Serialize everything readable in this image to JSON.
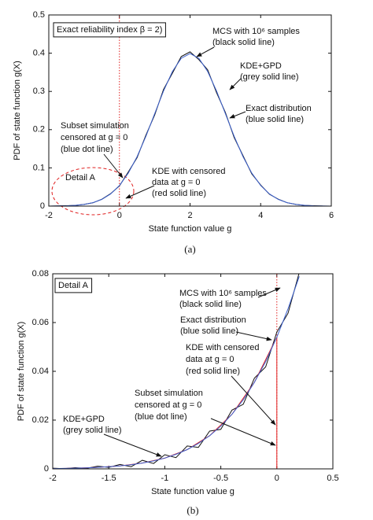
{
  "chart_data": [
    {
      "type": "line",
      "xlabel": "State function value g",
      "ylabel": "PDF of state function g(X)",
      "caption": "(a)",
      "xlim": [
        -2,
        6
      ],
      "ylim": [
        0,
        0.5
      ],
      "xticks": [
        -2,
        0,
        2,
        4,
        6
      ],
      "yticks": [
        0,
        0.1,
        0.2,
        0.3,
        0.4,
        0.5
      ],
      "vline": 0,
      "vline_color": "#e02020",
      "series": [
        {
          "color": "#111111",
          "x": [
            -2,
            -1.75,
            -1.5,
            -1.25,
            -1,
            -0.75,
            -0.5,
            -0.25,
            0,
            0.25,
            0.5,
            0.75,
            1,
            1.25,
            1.5,
            1.75,
            2,
            2.25,
            2.5,
            2.75,
            3,
            3.25,
            3.5,
            3.75,
            4,
            4.25,
            4.5,
            4.75,
            5,
            5.25,
            5.5,
            5.75,
            6
          ],
          "values": [
            0.0001,
            0.0005,
            0.0011,
            0.0018,
            0.0048,
            0.0086,
            0.018,
            0.0325,
            0.0528,
            0.089,
            0.1268,
            0.1856,
            0.2385,
            0.3052,
            0.3478,
            0.3912,
            0.4035,
            0.3831,
            0.3566,
            0.2968,
            0.2451,
            0.1792,
            0.1318,
            0.0842,
            0.0552,
            0.0309,
            0.0181,
            0.0088,
            0.0046,
            0.0019,
            0.001,
            0.0003,
            0.0001
          ]
        },
        {
          "color": "#3a5fcd",
          "x": [
            -2,
            -1.75,
            -1.5,
            -1.25,
            -1,
            -0.75,
            -0.5,
            -0.25,
            0,
            0.25,
            0.5,
            0.75,
            1,
            1.25,
            1.5,
            1.75,
            2,
            2.25,
            2.5,
            2.75,
            3,
            3.25,
            3.5,
            3.75,
            4,
            4.25,
            4.5,
            4.75,
            5,
            5.25,
            5.5,
            5.75,
            6
          ],
          "values": [
            0.0001,
            0.0004,
            0.0009,
            0.002,
            0.0044,
            0.0091,
            0.0175,
            0.0317,
            0.054,
            0.0863,
            0.1295,
            0.1826,
            0.242,
            0.3011,
            0.3521,
            0.3867,
            0.3989,
            0.3867,
            0.3521,
            0.3011,
            0.242,
            0.1826,
            0.1295,
            0.0863,
            0.054,
            0.0317,
            0.0175,
            0.0091,
            0.0044,
            0.002,
            0.0009,
            0.0004,
            0.0001
          ]
        },
        {
          "color": "#e02020",
          "x": [
            -2,
            6
          ],
          "values": [
            0,
            0
          ]
        }
      ],
      "annotations": [
        {
          "lines": [
            "Exact reliability index β = 2)"
          ]
        },
        {
          "lines": [
            "MCS with 10⁶ samples",
            "(black solid line)"
          ]
        },
        {
          "lines": [
            "KDE+GPD",
            "(grey solid line)"
          ]
        },
        {
          "lines": [
            "Exact distribution",
            "(blue solid line)"
          ]
        },
        {
          "lines": [
            "Subset simulation",
            "censored at g = 0",
            "(blue dot line)"
          ]
        },
        {
          "lines": [
            "Detail A"
          ]
        },
        {
          "lines": [
            "KDE with censored",
            "data at g = 0",
            "(red solid line)"
          ]
        }
      ]
    },
    {
      "type": "line",
      "xlabel": "State function value g",
      "ylabel": "PDF of state function g(X)",
      "caption": "(b)",
      "xlim": [
        -2,
        0.5
      ],
      "ylim": [
        0,
        0.08
      ],
      "xticks": [
        -2,
        -1.5,
        -1,
        -0.5,
        0,
        0.5
      ],
      "yticks": [
        0,
        0.02,
        0.04,
        0.06,
        0.08
      ],
      "vline": 0,
      "vline_color": "#e02020",
      "series": [
        {
          "color": "#111111",
          "x": [
            -2,
            -1.9,
            -1.8,
            -1.7,
            -1.6,
            -1.5,
            -1.4,
            -1.3,
            -1.2,
            -1.1,
            -1,
            -0.9,
            -0.8,
            -0.7,
            -0.6,
            -0.5,
            -0.4,
            -0.3,
            -0.2,
            -0.1,
            0,
            0.1,
            0.2
          ],
          "values": [
            0.0003,
            0.0001,
            0.0005,
            0.0002,
            0.0011,
            0.0006,
            0.0018,
            0.0009,
            0.0035,
            0.0022,
            0.0058,
            0.0046,
            0.0094,
            0.0088,
            0.0155,
            0.0162,
            0.0241,
            0.0265,
            0.0372,
            0.0418,
            0.0561,
            0.0638,
            0.0805
          ]
        },
        {
          "color": "#e02020",
          "x": [
            -2,
            -1.8,
            -1.6,
            -1.4,
            -1.2,
            -1,
            -0.8,
            -0.6,
            -0.4,
            -0.2,
            0,
            0,
            0.5
          ],
          "values": [
            0.0001,
            0.0003,
            0.0006,
            0.0012,
            0.0024,
            0.0044,
            0.0079,
            0.0136,
            0.0224,
            0.0355,
            0.054,
            0,
            0
          ]
        },
        {
          "color": "#3a5fcd",
          "x": [
            -2,
            -1.9,
            -1.8,
            -1.7,
            -1.6,
            -1.5,
            -1.4,
            -1.3,
            -1.2,
            -1.1,
            -1,
            -0.9,
            -0.8,
            -0.7,
            -0.6,
            -0.5,
            -0.4,
            -0.3,
            -0.2,
            -0.1,
            0,
            0.1,
            0.2
          ],
          "values": [
            0.000134,
            0.000199,
            0.000292,
            0.000425,
            0.000612,
            0.000873,
            0.001232,
            0.001723,
            0.002384,
            0.003267,
            0.004432,
            0.005953,
            0.007915,
            0.010421,
            0.013583,
            0.017528,
            0.022395,
            0.028327,
            0.035475,
            0.043984,
            0.053991,
            0.065616,
            0.07895
          ]
        }
      ],
      "annotations": [
        {
          "lines": [
            "Detail A"
          ]
        },
        {
          "lines": [
            "MCS with 10⁶ samples",
            "(black solid line)"
          ]
        },
        {
          "lines": [
            "Exact distribution",
            "(blue solid line)"
          ]
        },
        {
          "lines": [
            "KDE with censored",
            "data at g = 0",
            "(red solid line)"
          ]
        },
        {
          "lines": [
            "Subset simulation",
            "censored at g = 0",
            "(blue dot line)"
          ]
        },
        {
          "lines": [
            "KDE+GPD",
            "(grey solid line)"
          ]
        }
      ]
    }
  ]
}
